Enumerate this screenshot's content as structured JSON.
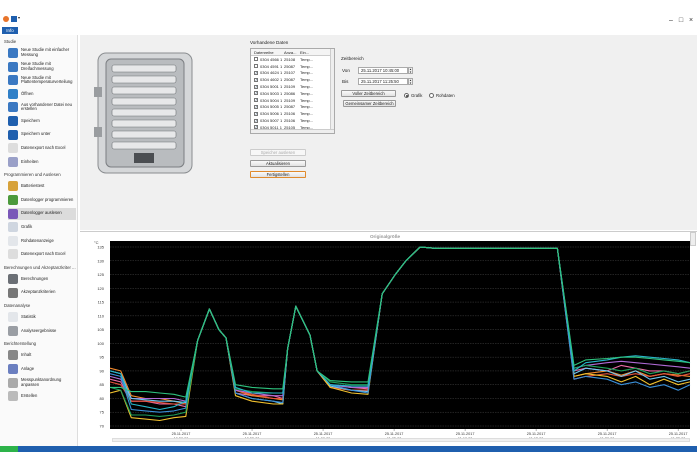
{
  "window": {
    "info_tab": "Info",
    "minimize": "–",
    "maximize": "□",
    "close": "×"
  },
  "sidebar": {
    "sections": [
      {
        "label": "Studie",
        "items": [
          {
            "label": "Neue Studie mit einfacher Messung",
            "icon": "new-study-icon"
          },
          {
            "label": "Neue Studie mit Dreifachmessung",
            "icon": "new-study-icon"
          },
          {
            "label": "Neue Studie mit Plattentemperaturverteilung",
            "icon": "new-study-icon"
          },
          {
            "label": "Öffnen",
            "icon": "open-icon"
          },
          {
            "label": "Aus vorhandener Datei neu erstellen",
            "icon": "new-from-file-icon"
          },
          {
            "label": "Speichern",
            "icon": "save-icon"
          },
          {
            "label": "Speichern unter",
            "icon": "save-as-icon"
          },
          {
            "label": "Datenexport nach Excel",
            "icon": "excel-icon"
          },
          {
            "label": "Einheiten",
            "icon": "gear-icon"
          }
        ]
      },
      {
        "label": "Programmieren und Auslesen",
        "items": [
          {
            "label": "Batteriestest",
            "icon": "battery-icon"
          },
          {
            "label": "Datenlogger programmieren",
            "icon": "logger-program-icon"
          },
          {
            "label": "Datenlogger auslesen",
            "icon": "logger-read-icon",
            "selected": true
          },
          {
            "label": "Grafik",
            "icon": "graph-icon"
          },
          {
            "label": "Rohdatenanzeige",
            "icon": "grid-icon"
          },
          {
            "label": "Datenexport nach Excel",
            "icon": "excel-icon"
          }
        ]
      },
      {
        "label": "Berechnungen und Akzeptanzkriter ...",
        "items": [
          {
            "label": "Berechnungen",
            "icon": "calculator-icon"
          },
          {
            "label": "Akzeptanzkriterien",
            "icon": "checkmark-icon"
          }
        ]
      },
      {
        "label": "Datenanalyse",
        "items": [
          {
            "label": "Statistik",
            "icon": "grid-icon"
          },
          {
            "label": "Analyseergebnisse",
            "icon": "analysis-icon"
          }
        ]
      },
      {
        "label": "Berichterstellung",
        "items": [
          {
            "label": "Inhalt",
            "icon": "checklist-icon"
          },
          {
            "label": "Anlage",
            "icon": "document-icon"
          },
          {
            "label": "Messpunktanordnung anpassen",
            "icon": "probe-icon"
          },
          {
            "label": "Erstellen",
            "icon": "printer-icon"
          }
        ]
      }
    ]
  },
  "data_panel": {
    "title": "Vorhandene Daten",
    "columns": [
      "Datenreihe",
      "Anza...",
      "Ein..."
    ],
    "rows": [
      {
        "name": "0304 4566 1",
        "count": "25108",
        "unit": "Temp...",
        "checked": false
      },
      {
        "name": "0304 4591 1",
        "count": "25087",
        "unit": "Temp...",
        "checked": false
      },
      {
        "name": "0304 4624 1",
        "count": "25107",
        "unit": "Temp...",
        "checked": true
      },
      {
        "name": "0304 4602 1",
        "count": "25087",
        "unit": "Temp...",
        "checked": true
      },
      {
        "name": "0304 5001 1",
        "count": "25109",
        "unit": "Temp...",
        "checked": true
      },
      {
        "name": "0304 5003 1",
        "count": "25086",
        "unit": "Temp...",
        "checked": true
      },
      {
        "name": "0304 5004 1",
        "count": "25109",
        "unit": "Temp...",
        "checked": true
      },
      {
        "name": "0304 5005 1",
        "count": "25087",
        "unit": "Temp...",
        "checked": true
      },
      {
        "name": "0304 5006 1",
        "count": "25106",
        "unit": "Temp...",
        "checked": true
      },
      {
        "name": "0304 5007 1",
        "count": "25106",
        "unit": "Temp...",
        "checked": true
      },
      {
        "name": "0304 5011 1",
        "count": "25105",
        "unit": "Temp...",
        "checked": true
      },
      {
        "name": "0304 5017 1",
        "count": "25096",
        "unit": "Temp...",
        "checked": true
      }
    ],
    "read_memory": "Speicher auslesen",
    "refresh": "Aktualisieren",
    "finish": "Fertigstellen"
  },
  "time_range": {
    "title": "Zeitbereich",
    "from_label": "Von",
    "from_value": "25.11.2017 10:45:00",
    "to_label": "Bis",
    "to_value": "25.11.2017 11:25:50",
    "full_range": "Voller Zeitbereich",
    "common_range": "Gemeinsamer Zeitbereich",
    "view_graph": "Grafik",
    "view_raw": "Rohdaten",
    "selected_view": "Grafik"
  },
  "chart_header": "Originalgröße",
  "chart_data": {
    "type": "line",
    "ylabel": "°C",
    "ylim": [
      70,
      135
    ],
    "yticks": [
      70,
      75,
      80,
      85,
      90,
      95,
      100,
      105,
      110,
      115,
      120,
      125,
      130,
      135
    ],
    "xlim": [
      "25.11.2017 10:45:00",
      "25.11.2017 11:25:50"
    ],
    "xticks": [
      [
        "25.11.2017",
        "10:50:00"
      ],
      [
        "25.11.2017",
        "10:55:00"
      ],
      [
        "25.11.2017",
        "11:00:00"
      ],
      [
        "25.11.2017",
        "11:05:00"
      ],
      [
        "25.11.2017",
        "11:10:00"
      ],
      [
        "25.11.2017",
        "11:15:00"
      ],
      [
        "25.11.2017",
        "11:20:00"
      ],
      [
        "25.11.2017",
        "11:25:00"
      ]
    ],
    "grid": true,
    "background": "#000000",
    "x": [
      "10:45:00",
      "10:45:45",
      "10:46:30",
      "10:47:30",
      "10:48:30",
      "10:49:30",
      "10:50:20",
      "10:51:10",
      "10:52:00",
      "10:52:40",
      "10:53:10",
      "10:53:50",
      "10:55:00",
      "10:56:30",
      "10:57:10",
      "10:57:30",
      "10:58:05",
      "10:59:05",
      "10:59:35",
      "11:00:30",
      "11:02:00",
      "11:03:10",
      "11:04:10",
      "11:05:05",
      "11:05:50",
      "11:06:50",
      "11:08:00",
      "11:16:30",
      "11:17:40",
      "11:18:30",
      "11:20:00",
      "11:21:00",
      "11:22:00",
      "11:23:00",
      "11:24:00",
      "11:25:00",
      "11:25:50"
    ],
    "series": [
      {
        "color": "#e96aa5",
        "values": [
          87,
          86,
          79,
          79,
          78,
          78,
          77,
          101,
          112.5,
          105,
          102,
          82,
          81,
          81,
          80,
          98,
          113.5,
          103,
          90,
          85,
          84,
          83.5,
          118,
          125,
          130,
          135,
          134.5,
          134.5,
          90,
          91,
          90,
          92,
          91,
          90,
          90,
          89,
          90
        ]
      },
      {
        "color": "#f28a2e",
        "values": [
          91,
          90,
          81,
          80,
          80,
          79,
          78,
          101,
          112.5,
          105,
          102,
          83,
          81,
          80,
          79.5,
          98,
          113.5,
          103,
          90,
          84,
          83,
          83,
          118,
          125,
          130,
          135,
          134.5,
          134.5,
          88,
          89,
          90,
          88.5,
          90,
          88,
          89,
          88.5,
          88
        ]
      },
      {
        "color": "#e5533b",
        "values": [
          86,
          85,
          79,
          79,
          78.5,
          78,
          78,
          101,
          112.5,
          105,
          102,
          83,
          81.5,
          80,
          80,
          98,
          113.5,
          103,
          90,
          84,
          83,
          83,
          118,
          125,
          130,
          135,
          134.5,
          134.5,
          87,
          88,
          89,
          88,
          89,
          88,
          89,
          88,
          89
        ]
      },
      {
        "color": "#b06ad6",
        "values": [
          88,
          87,
          80,
          80,
          80,
          80,
          79,
          101,
          112.5,
          105,
          102,
          83,
          82,
          81,
          81,
          98,
          113.5,
          103,
          90,
          85,
          84,
          84,
          118,
          125,
          130,
          135,
          134.5,
          134.5,
          91,
          92,
          93,
          93.5,
          93,
          92.5,
          92,
          91.5,
          91
        ]
      },
      {
        "color": "#6ec6f0",
        "values": [
          90,
          89,
          80,
          79.5,
          79,
          79,
          78.5,
          101,
          112.5,
          105,
          102,
          82,
          80,
          79,
          78,
          98,
          113.5,
          103,
          90,
          84.5,
          83,
          82.5,
          118,
          125,
          130,
          135,
          134.5,
          134.5,
          89,
          91,
          90,
          88,
          90,
          87,
          88,
          86,
          87
        ]
      },
      {
        "color": "#f2c12e",
        "values": [
          82,
          83,
          73,
          72.5,
          72,
          73,
          73.5,
          101,
          112.5,
          105,
          102,
          81,
          79,
          78,
          78,
          98,
          113.5,
          103,
          90,
          84,
          82,
          81.5,
          118,
          125,
          130,
          135,
          134.5,
          134.5,
          88,
          89,
          88,
          86,
          88,
          85,
          87,
          85,
          86
        ]
      },
      {
        "color": "#3a8fd8",
        "values": [
          89,
          88,
          76,
          75.5,
          75,
          75.5,
          76.5,
          101,
          112.5,
          105,
          102,
          82,
          80,
          79,
          78.5,
          98,
          113.5,
          103,
          90,
          85,
          83,
          82,
          118,
          125,
          130,
          135,
          134.5,
          134.5,
          87,
          88,
          87,
          85,
          86,
          84,
          85,
          83,
          85
        ]
      },
      {
        "color": "#1e9e5a",
        "values": [
          84,
          83,
          74,
          74,
          73.5,
          74,
          75,
          101,
          112.5,
          105,
          102,
          83.5,
          82.5,
          82,
          82,
          98,
          113.5,
          103,
          90,
          86,
          85,
          85,
          118,
          125,
          130,
          135,
          134.5,
          134.5,
          91,
          92,
          91,
          90,
          91,
          89,
          90,
          89,
          90
        ]
      },
      {
        "color": "#27b6c9",
        "values": [
          90,
          89,
          78,
          77,
          76,
          77,
          79,
          101,
          112.5,
          105,
          102,
          84,
          82,
          82,
          82,
          98,
          113.5,
          103,
          90,
          85,
          84.5,
          84.5,
          118,
          125,
          130,
          135,
          134.5,
          134.5,
          90,
          93,
          94,
          95,
          95.5,
          95,
          94.5,
          94,
          93
        ]
      },
      {
        "color": "#2ec27e",
        "values": [
          84,
          84,
          82.5,
          82.5,
          82,
          81.5,
          80.5,
          101,
          112.5,
          105,
          102,
          85,
          84,
          83.5,
          83.5,
          98,
          113.5,
          103,
          90,
          86.5,
          86,
          86,
          118,
          125,
          130,
          135,
          134.5,
          134.5,
          92,
          94,
          94.5,
          95,
          95,
          94.5,
          94,
          93.5,
          93
        ]
      }
    ]
  }
}
